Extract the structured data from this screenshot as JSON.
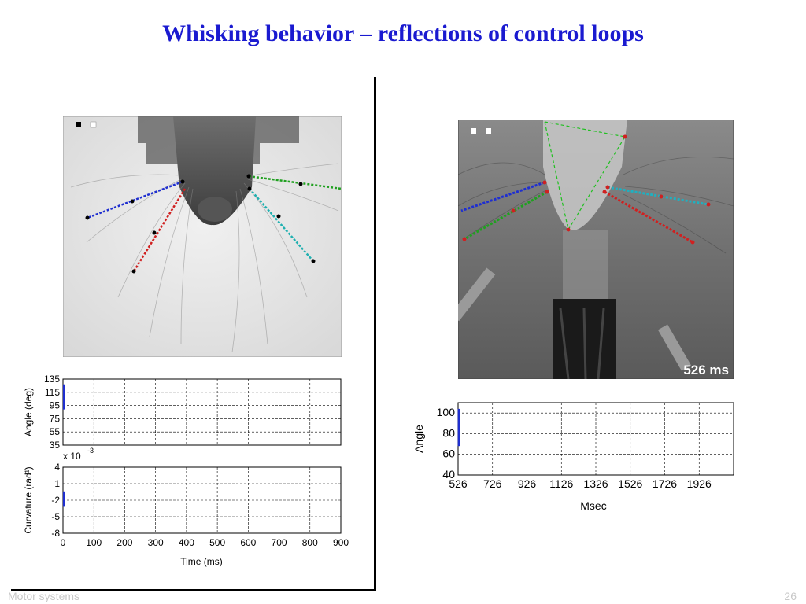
{
  "slide": {
    "title": "Whisking behavior – reflections of control loops",
    "footer_left": "Motor systems",
    "page_number": "26"
  },
  "left_video": {
    "description_icon": "rat-whisker-video-frame"
  },
  "right_video": {
    "time_badge": "526 ms"
  },
  "chart_data": [
    {
      "type": "line",
      "ylabel": "Angle (deg)",
      "xlabel": "",
      "xlim": [
        0,
        900
      ],
      "ylim": [
        35,
        135
      ],
      "yticks": [
        "135",
        "115",
        "95",
        "75",
        "55",
        "35"
      ],
      "xtick_values": [
        0,
        100,
        200,
        300,
        400,
        500,
        600,
        700,
        800,
        900
      ],
      "grid": true,
      "series": [
        {
          "color": "#1f2fd0",
          "x": [
            3,
            3
          ],
          "y": [
            89,
            127
          ]
        }
      ]
    },
    {
      "type": "line",
      "ylabel": "Curvature (rad¹)",
      "xlabel": "Time (ms)",
      "exponent_label": "x 10",
      "exponent_power": "-3",
      "xlim": [
        0,
        900
      ],
      "ylim": [
        -8,
        4
      ],
      "yticks": [
        "4",
        "1",
        "-2",
        "-5",
        "-8"
      ],
      "xticks": [
        "0",
        "100",
        "200",
        "300",
        "400",
        "500",
        "600",
        "700",
        "800",
        "900"
      ],
      "grid": true,
      "series": [
        {
          "color": "#1f2fd0",
          "x": [
            3,
            3
          ],
          "y": [
            -3.2,
            -0.4
          ]
        }
      ]
    },
    {
      "type": "line",
      "ylabel": "Angle",
      "xlabel": "Msec",
      "xlim": [
        526,
        2126
      ],
      "ylim": [
        40,
        110
      ],
      "yticks": [
        "100",
        "80",
        "60",
        "40"
      ],
      "ytick_values": [
        100,
        80,
        60,
        40
      ],
      "xticks": [
        "526",
        "726",
        "926",
        "1126",
        "1326",
        "1526",
        "1726",
        "1926"
      ],
      "xtick_values": [
        526,
        726,
        926,
        1126,
        1326,
        1526,
        1726,
        1926
      ],
      "grid": true,
      "series": [
        {
          "color": "#1f2fd0",
          "x": [
            530,
            530
          ],
          "y": [
            68,
            104
          ]
        }
      ]
    }
  ]
}
